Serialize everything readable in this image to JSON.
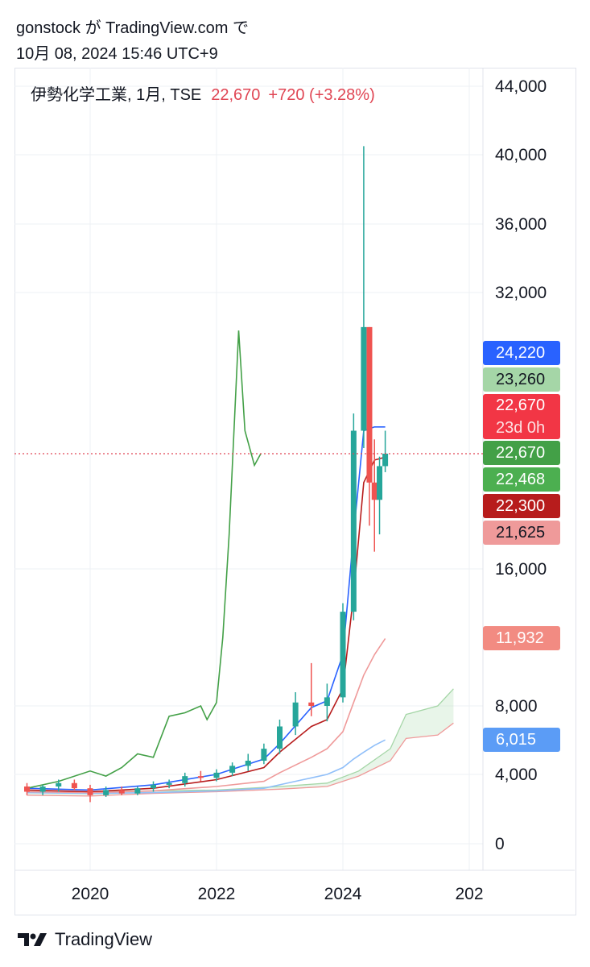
{
  "header": {
    "line1": "gonstock が TradingView.com で",
    "line2": "10月 08, 2024 15:46 UTC+9"
  },
  "legend": {
    "symbol": "伊勢化学工業, 1月, TSE",
    "price": "22,670",
    "change": "+720 (+3.28%)"
  },
  "price_tags": [
    {
      "label": "24,220",
      "value": 24220,
      "color": "#2962ff"
    },
    {
      "label": "23,260",
      "value": 23260,
      "color": "#a5d6a7",
      "text_color": "#131722"
    },
    {
      "label": "22,670",
      "sub": "23d 0h",
      "value": 22670,
      "color": "#f23645"
    },
    {
      "label": "22,670",
      "value": 22670,
      "color": "#43a047"
    },
    {
      "label": "22,468",
      "value": 22468,
      "color": "#4caf50"
    },
    {
      "label": "22,300",
      "value": 22300,
      "color": "#b71c1c"
    },
    {
      "label": "21,625",
      "value": 21625,
      "color": "#ef9a9a",
      "text_color": "#131722"
    },
    {
      "label": "11,932",
      "value": 11932,
      "color": "#f28b82"
    },
    {
      "label": "6,015",
      "value": 6015,
      "color": "#5b9cf6"
    }
  ],
  "footer": {
    "brand": "TradingView",
    "logo_icon": "tradingview-logo-icon"
  },
  "chart_data": {
    "type": "candlestick",
    "interval": "1M",
    "y_ticks": [
      0,
      4000,
      8000,
      16000,
      32000,
      36000,
      40000,
      44000
    ],
    "y_tick_labels": [
      "0",
      "4,000",
      "8,000",
      "16,000",
      "32,000",
      "36,000",
      "40,000",
      "44,000"
    ],
    "x_ticks": [
      "2020",
      "2022",
      "2024",
      "202"
    ],
    "ylim": [
      -1000,
      45000
    ],
    "grid": true,
    "last_price_line": 22670,
    "series_colors": {
      "up": "#26a69a",
      "down": "#ef5350",
      "ma_blue": "#2962ff",
      "ma_darkred": "#b71c1c",
      "ma_pink": "#ef9a9a",
      "ma_lightblue": "#90bff9",
      "comparison": "#43a047",
      "cloud": "#a5d6a7"
    },
    "candles": [
      {
        "t": 2019.0,
        "o": 3300,
        "h": 3500,
        "l": 2800,
        "c": 3000
      },
      {
        "t": 2019.25,
        "o": 3000,
        "h": 3400,
        "l": 2800,
        "c": 3300
      },
      {
        "t": 2019.5,
        "o": 3300,
        "h": 3700,
        "l": 3000,
        "c": 3500
      },
      {
        "t": 2019.75,
        "o": 3500,
        "h": 3700,
        "l": 3100,
        "c": 3200
      },
      {
        "t": 2020.0,
        "o": 3200,
        "h": 3400,
        "l": 2400,
        "c": 2800
      },
      {
        "t": 2020.25,
        "o": 2800,
        "h": 3300,
        "l": 2700,
        "c": 3100
      },
      {
        "t": 2020.5,
        "o": 3100,
        "h": 3300,
        "l": 2800,
        "c": 2900
      },
      {
        "t": 2020.75,
        "o": 2900,
        "h": 3300,
        "l": 2800,
        "c": 3200
      },
      {
        "t": 2021.0,
        "o": 3200,
        "h": 3600,
        "l": 3000,
        "c": 3400
      },
      {
        "t": 2021.25,
        "o": 3400,
        "h": 3700,
        "l": 3200,
        "c": 3500
      },
      {
        "t": 2021.5,
        "o": 3500,
        "h": 4100,
        "l": 3300,
        "c": 3900
      },
      {
        "t": 2021.75,
        "o": 3900,
        "h": 4200,
        "l": 3600,
        "c": 3800
      },
      {
        "t": 2022.0,
        "o": 3800,
        "h": 4300,
        "l": 3600,
        "c": 4100
      },
      {
        "t": 2022.25,
        "o": 4100,
        "h": 4700,
        "l": 3900,
        "c": 4500
      },
      {
        "t": 2022.5,
        "o": 4500,
        "h": 5200,
        "l": 4200,
        "c": 4800
      },
      {
        "t": 2022.75,
        "o": 4800,
        "h": 5800,
        "l": 4600,
        "c": 5500
      },
      {
        "t": 2023.0,
        "o": 5500,
        "h": 7200,
        "l": 5200,
        "c": 6800
      },
      {
        "t": 2023.25,
        "o": 6800,
        "h": 8800,
        "l": 6300,
        "c": 8200
      },
      {
        "t": 2023.5,
        "o": 8200,
        "h": 10500,
        "l": 7400,
        "c": 8000
      },
      {
        "t": 2023.75,
        "o": 8000,
        "h": 9300,
        "l": 7100,
        "c": 8500
      },
      {
        "t": 2024.0,
        "o": 8500,
        "h": 14000,
        "l": 8200,
        "c": 13500
      },
      {
        "t": 2024.17,
        "o": 13500,
        "h": 25000,
        "l": 13000,
        "c": 24000
      },
      {
        "t": 2024.33,
        "o": 24000,
        "h": 40500,
        "l": 23000,
        "c": 30000
      },
      {
        "t": 2024.42,
        "o": 30000,
        "h": 30000,
        "l": 18500,
        "c": 21000
      },
      {
        "t": 2024.5,
        "o": 21000,
        "h": 23500,
        "l": 17000,
        "c": 20000
      },
      {
        "t": 2024.58,
        "o": 20000,
        "h": 22500,
        "l": 18000,
        "c": 21950
      },
      {
        "t": 2024.67,
        "o": 21950,
        "h": 24000,
        "l": 21600,
        "c": 22670
      }
    ],
    "ma_blue": [
      [
        2019.0,
        3200
      ],
      [
        2020.0,
        3100
      ],
      [
        2021.0,
        3400
      ],
      [
        2022.0,
        4000
      ],
      [
        2022.75,
        4900
      ],
      [
        2023.0,
        5800
      ],
      [
        2023.5,
        7900
      ],
      [
        2023.75,
        8300
      ],
      [
        2024.0,
        11000
      ],
      [
        2024.17,
        18000
      ],
      [
        2024.33,
        24000
      ],
      [
        2024.5,
        24220
      ],
      [
        2024.67,
        24220
      ]
    ],
    "ma_darkred": [
      [
        2019.0,
        3100
      ],
      [
        2020.0,
        3000
      ],
      [
        2021.0,
        3200
      ],
      [
        2022.0,
        3700
      ],
      [
        2022.75,
        4400
      ],
      [
        2023.0,
        5300
      ],
      [
        2023.5,
        6800
      ],
      [
        2023.75,
        7200
      ],
      [
        2024.0,
        9000
      ],
      [
        2024.17,
        14500
      ],
      [
        2024.33,
        21000
      ],
      [
        2024.5,
        22300
      ],
      [
        2024.67,
        22468
      ]
    ],
    "ma_pink": [
      [
        2019.0,
        3000
      ],
      [
        2020.0,
        2950
      ],
      [
        2021.0,
        3050
      ],
      [
        2022.0,
        3300
      ],
      [
        2022.75,
        3600
      ],
      [
        2023.0,
        4100
      ],
      [
        2023.5,
        5000
      ],
      [
        2023.75,
        5500
      ],
      [
        2024.0,
        6500
      ],
      [
        2024.17,
        8200
      ],
      [
        2024.33,
        9800
      ],
      [
        2024.5,
        11000
      ],
      [
        2024.67,
        11932
      ]
    ],
    "ma_lightblue": [
      [
        2019.0,
        2950
      ],
      [
        2020.0,
        2900
      ],
      [
        2021.0,
        2950
      ],
      [
        2022.0,
        3050
      ],
      [
        2022.75,
        3200
      ],
      [
        2023.0,
        3400
      ],
      [
        2023.5,
        3800
      ],
      [
        2023.75,
        4000
      ],
      [
        2024.0,
        4400
      ],
      [
        2024.17,
        4900
      ],
      [
        2024.33,
        5300
      ],
      [
        2024.5,
        5700
      ],
      [
        2024.67,
        6015
      ]
    ],
    "comparison": [
      [
        2019.0,
        3200
      ],
      [
        2019.5,
        3600
      ],
      [
        2020.0,
        4200
      ],
      [
        2020.25,
        3900
      ],
      [
        2020.5,
        4400
      ],
      [
        2020.75,
        5200
      ],
      [
        2021.0,
        5000
      ],
      [
        2021.25,
        7400
      ],
      [
        2021.5,
        7600
      ],
      [
        2021.75,
        8000
      ],
      [
        2021.85,
        7200
      ],
      [
        2022.0,
        8200
      ],
      [
        2022.1,
        12000
      ],
      [
        2022.2,
        18000
      ],
      [
        2022.35,
        29800
      ],
      [
        2022.45,
        24000
      ],
      [
        2022.6,
        22000
      ],
      [
        2022.7,
        22670
      ]
    ],
    "cloud_upper": [
      [
        2019.0,
        3100
      ],
      [
        2020.0,
        3000
      ],
      [
        2021.0,
        3050
      ],
      [
        2022.0,
        3100
      ],
      [
        2023.0,
        3300
      ],
      [
        2023.75,
        3500
      ],
      [
        2024.25,
        4200
      ],
      [
        2024.75,
        5500
      ],
      [
        2025.0,
        7500
      ],
      [
        2025.5,
        8000
      ],
      [
        2025.75,
        9000
      ]
    ],
    "cloud_lower": [
      [
        2019.0,
        2800
      ],
      [
        2020.0,
        2750
      ],
      [
        2021.0,
        2900
      ],
      [
        2022.0,
        3000
      ],
      [
        2023.0,
        3150
      ],
      [
        2023.75,
        3300
      ],
      [
        2024.25,
        3900
      ],
      [
        2024.75,
        4800
      ],
      [
        2025.0,
        6100
      ],
      [
        2025.5,
        6300
      ],
      [
        2025.75,
        7000
      ]
    ]
  }
}
